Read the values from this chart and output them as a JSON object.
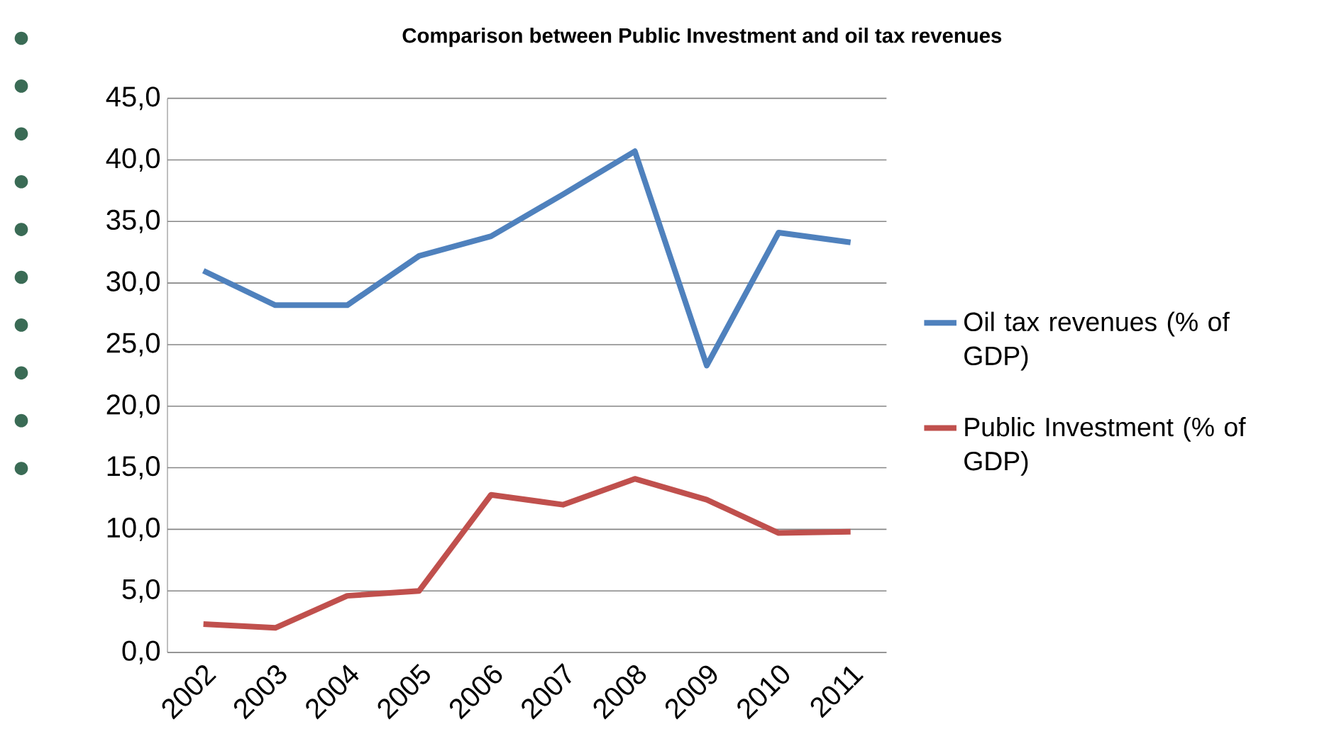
{
  "chart_data": {
    "type": "line",
    "title": "Comparison between Public Investment and oil tax revenues",
    "categories": [
      "2002",
      "2003",
      "2004",
      "2005",
      "2006",
      "2007",
      "2008",
      "2009",
      "2010",
      "2011"
    ],
    "series": [
      {
        "name": "Oil tax revenues (% of GDP)",
        "color": "#4f81bd",
        "values": [
          31.0,
          28.2,
          28.2,
          32.2,
          33.8,
          37.2,
          40.7,
          23.3,
          34.1,
          33.3
        ]
      },
      {
        "name": "Public Investment (% of GDP)",
        "color": "#c0504d",
        "values": [
          2.3,
          2.0,
          4.6,
          5.0,
          12.8,
          12.0,
          14.1,
          12.4,
          9.7,
          9.8
        ]
      }
    ],
    "ylim": [
      0,
      45
    ],
    "yticks": [
      {
        "value": 0,
        "label": "0,0"
      },
      {
        "value": 5,
        "label": "5,0"
      },
      {
        "value": 10,
        "label": "10,0"
      },
      {
        "value": 15,
        "label": "15,0"
      },
      {
        "value": 20,
        "label": "20,0"
      },
      {
        "value": 25,
        "label": "25,0"
      },
      {
        "value": 30,
        "label": "30,0"
      },
      {
        "value": 35,
        "label": "35,0"
      },
      {
        "value": 40,
        "label": "40,0"
      },
      {
        "value": 45,
        "label": "45,0"
      }
    ],
    "grid": "y",
    "legend": "right",
    "marker": "none",
    "line_style": "solid"
  }
}
